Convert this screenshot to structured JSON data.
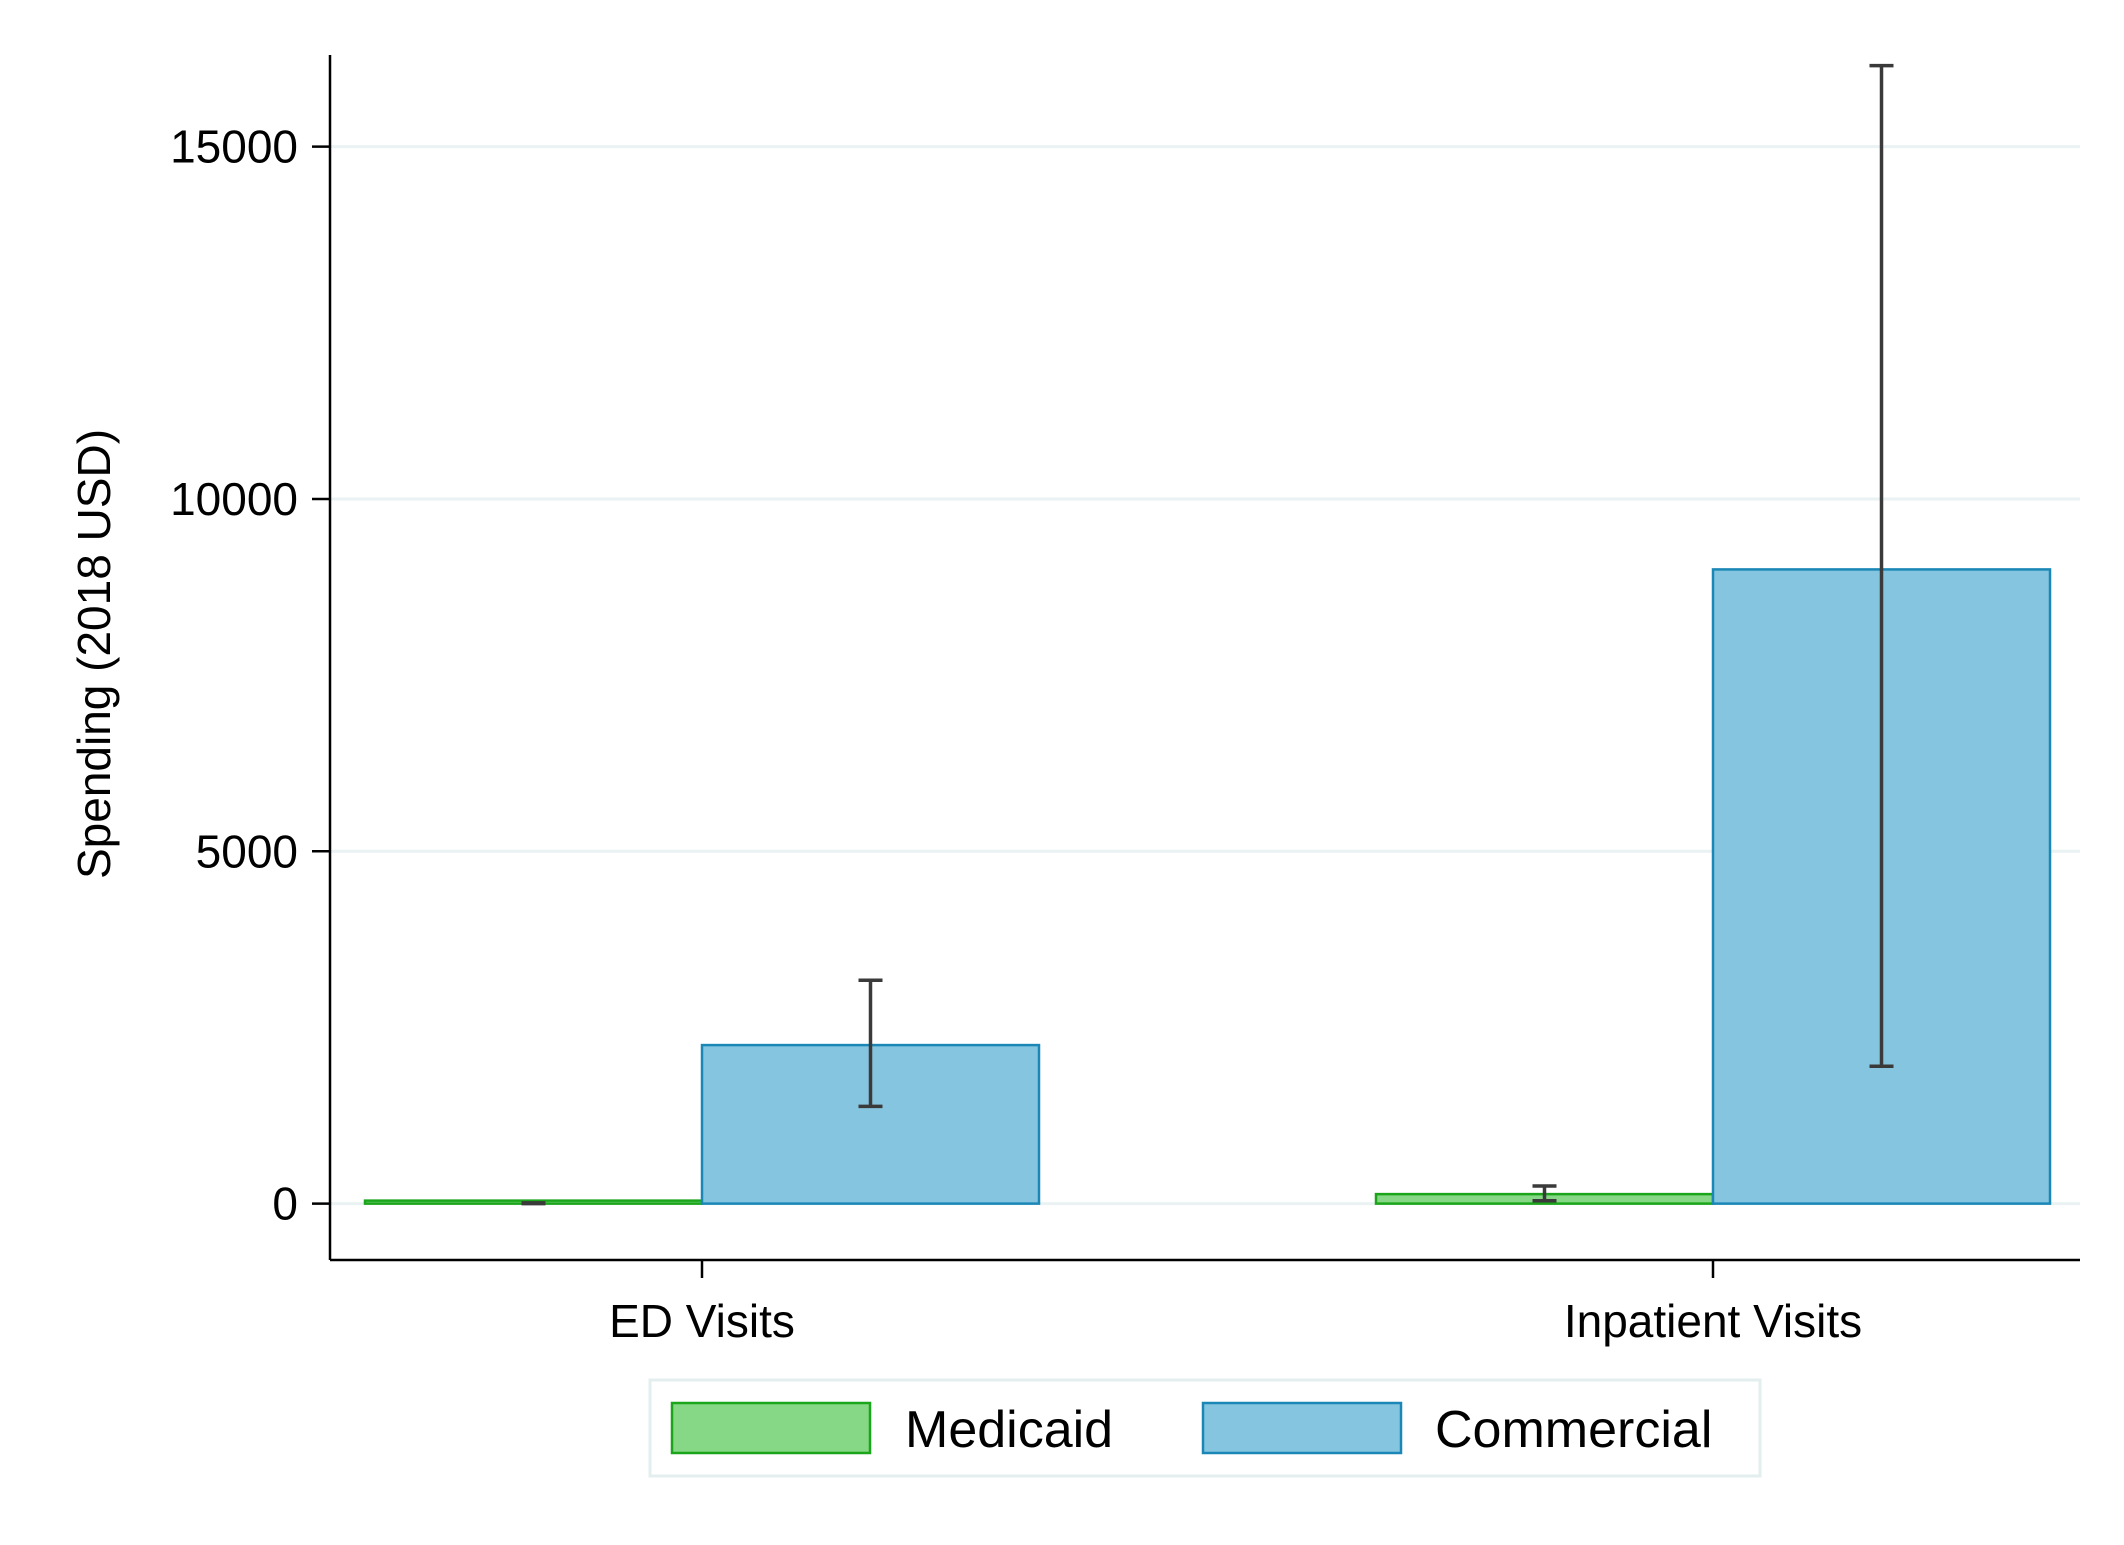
{
  "chart_data": {
    "type": "bar",
    "title": "",
    "xlabel": "",
    "ylabel": "Spending (2018 USD)",
    "categories": [
      "ED Visits",
      "Inpatient Visits"
    ],
    "ylim": [
      -800,
      16300
    ],
    "yticks": [
      0,
      5000,
      10000,
      15000
    ],
    "ytick_labels": [
      "0",
      "5000",
      "10000",
      "15000"
    ],
    "grid": true,
    "legend_position": "bottom",
    "series": [
      {
        "name": "Medicaid",
        "color": "#86d886",
        "edge_color": "#1aa51a",
        "values": [
          5,
          135
        ],
        "error_low": [
          0,
          40
        ],
        "error_high": [
          10,
          250
        ]
      },
      {
        "name": "Commercial",
        "color": "#86c5df",
        "edge_color": "#1a87b6",
        "values": [
          2250,
          9000
        ],
        "error_low": [
          1380,
          1950
        ],
        "error_high": [
          3170,
          16150
        ]
      }
    ],
    "errorbar_color": "#3a3a3a",
    "gridline_color": "#eaf2f3"
  }
}
